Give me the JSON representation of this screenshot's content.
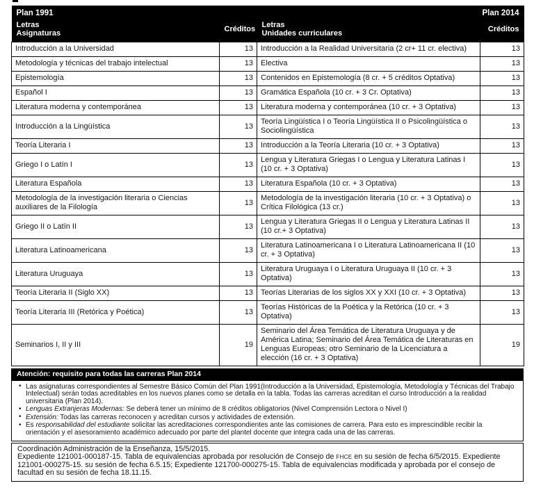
{
  "table_header": {
    "plan_1991": "Plan 1991",
    "plan_2014": "Plan 2014",
    "letras_left": "Letras",
    "asignaturas": "Asignaturas",
    "creditos_left": "Créditos",
    "letras_right": "Letras",
    "unidades": "Unidades curriculares",
    "creditos_right": "Créditos"
  },
  "rows": [
    {
      "asignatura": "Introducción a la Universidad",
      "cred_1991": "13",
      "unidad": "Introducción a la Realidad Universitaria (2 cr+ 11 cr. electiva)",
      "cred_2014": "13"
    },
    {
      "asignatura": "Metodología y técnicas del trabajo intelectual",
      "cred_1991": "13",
      "unidad": "Electiva",
      "cred_2014": "13"
    },
    {
      "asignatura": "Epistemología",
      "cred_1991": "13",
      "unidad": "Contenidos en Epistemología (8 cr. + 5 créditos Optativa)",
      "cred_2014": "13"
    },
    {
      "asignatura": "Español I",
      "cred_1991": "13",
      "unidad": "Gramática Española (10 cr. + 3 Cr. Optativa)",
      "cred_2014": "13"
    },
    {
      "asignatura": "Literatura moderna y contemporánea",
      "cred_1991": "13",
      "unidad": "Literatura moderna y contemporánea (10 cr. + 3 Optativa)",
      "cred_2014": "13"
    },
    {
      "asignatura": "Introducción a la Lingüística",
      "cred_1991": "13",
      "unidad": "Teoría Lingüística I o Teoría Lingüística II o Psicolingüística o Sociolingüística",
      "cred_2014": "13"
    },
    {
      "asignatura": "Teoría Literaria I",
      "cred_1991": "13",
      "unidad": "Introducción a la Teoría Literaria (10 cr. + 3 Optativa)",
      "cred_2014": "13"
    },
    {
      "asignatura": "Griego I o Latín I",
      "cred_1991": "13",
      "unidad": "Lengua y Literatura Griegas I o Lengua y Literatura Latinas I (10 cr. + 3 Optativa)",
      "cred_2014": "13"
    },
    {
      "asignatura": "Literatura Española",
      "cred_1991": "13",
      "unidad": "Literatura Española (10 cr. + 3 Optativa)",
      "cred_2014": "13"
    },
    {
      "asignatura": "Metodología de la investigación literaria o Ciencias auxiliares de la Filología",
      "cred_1991": "13",
      "unidad": "Metodología de la investigación literaria (10 cr. + 3 Optativa) o Crítica Filológica (13 cr.)",
      "cred_2014": "13"
    },
    {
      "asignatura": "Griego II o Latín II",
      "cred_1991": "13",
      "unidad": "Lengua y Literatura Griegas II o Lengua y Literatura Latinas II (10 cr.+ 3 Optativa)",
      "cred_2014": "13"
    },
    {
      "asignatura": "Literatura Latinoamericana",
      "cred_1991": "13",
      "unidad": "Literatura Latinoamericana I o Literatura Latinoamericana II (10 cr. + 3 Optativa)",
      "cred_2014": "13"
    },
    {
      "asignatura": "Literatura Uruguaya",
      "cred_1991": "13",
      "unidad": "Literatura Uruguaya I o Literatura Uruguaya II (10 cr. + 3 Optativa)",
      "cred_2014": "13"
    },
    {
      "asignatura": "Teoría Literaria II (Siglo XX)",
      "cred_1991": "13",
      "unidad": "Teorías Literarias de los siglos XX y XXI (10 cr. + 3 Optativa)",
      "cred_2014": "13"
    },
    {
      "asignatura": "Teoría Literaria III (Retórica y Poética)",
      "cred_1991": "13",
      "unidad": "Teorías Históricas de la Poética y la Retórica (10 cr. + 3 Optativa)",
      "cred_2014": "13"
    },
    {
      "asignatura": "Seminarios I, II y III",
      "cred_1991": "19",
      "unidad": "Seminario del Área Temática de Literatura Uruguaya y de América Latina; Seminario del Área Temática de Literaturas en Lenguas Europeas; otro Seminario de la Licenciatura a elección (16 cr. + 3 Optativa)",
      "cred_2014": "19"
    }
  ],
  "attention": {
    "title": "Atención: requisito para todas las carreras Plan 2014"
  },
  "notes": [
    [
      {
        "t": "Las asignaturas correspondientes al Semestre Básico Común del Plan 1991(Introducción a la Universidad, Epistemología, Metodología y Técnicas del Trabajo Intelectual) serán todas acreditables en los nuevos planes como se detalla en la tabla. Todas las carreras acreditan el curso Introducción a la realidad universitaria (Plan 2014)."
      }
    ],
    [
      {
        "t": "Lenguas Extranjeras Modernas:",
        "i": true
      },
      {
        "t": " Se deberá tener un mínimo de 8 créditos obligatorios (Nivel Comprensión Lectora o Nivel I)"
      }
    ],
    [
      {
        "t": "Extensión:",
        "i": true
      },
      {
        "t": " Todas las carreras reconocen y acreditan cursos y actividades de extensión."
      }
    ],
    [
      {
        "t": "Es "
      },
      {
        "t": "responsabilidad del estudiante",
        "i": true
      },
      {
        "t": " solicitar las acreditaciones correspondientes ante las comisiones de carrera. Para esto es imprescindible recibir la orientación y el asesoramiento académico adecuado por parte del plantel docente que integra cada una de las carreras."
      }
    ]
  ],
  "footer": {
    "line1": "Coordinación Administración de la Enseñanza, 15/5/2015.",
    "line2": [
      {
        "t": "Expediente 121001-000187-15. Tabla de equivalencias aprobada por resolución de Consejo de "
      },
      {
        "t": "FHCE",
        "sc": true
      },
      {
        "t": " en su sesión de fecha 6/5/2015. Expediente 121001-000275-15. su sesión de fecha 6.5.15; Expediente 121700-000275-15. Tabla de equivalencias modificada y aprobada por el consejo de facultad en su sesión de fecha 18.11.15."
      }
    ]
  }
}
